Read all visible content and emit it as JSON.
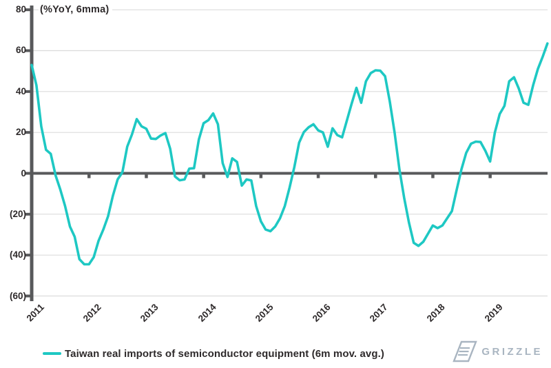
{
  "header": {
    "annotation": "(%YoY, 6mma)"
  },
  "legend": {
    "label": "Taiwan real imports of semiconductor equipment (6m mov. avg.)"
  },
  "branding": {
    "logo_text": "GRIZZLE"
  },
  "colors": {
    "line": "#1EC8C3",
    "axis": "#58595B",
    "grid": "#DBDBDB",
    "text": "#2E2A2B",
    "logo": "#A9B5C1"
  },
  "chart_data": {
    "type": "line",
    "title": "(%YoY, 6mma)",
    "legend_position": "bottom",
    "grid": true,
    "ylim": [
      -60,
      80
    ],
    "y_ticks": [
      80,
      60,
      40,
      20,
      0,
      -20,
      -40,
      -60
    ],
    "y_tick_labels": [
      "80",
      "60",
      "40",
      "20",
      "0",
      "(20)",
      "(40)",
      "(60)"
    ],
    "x_tick_labels": [
      "2011",
      "2012",
      "2013",
      "2014",
      "2015",
      "2016",
      "2017",
      "2018",
      "2019"
    ],
    "series": [
      {
        "name": "Taiwan real imports of semiconductor equipment (6m mov. avg.)",
        "frequency": "monthly",
        "start": "2011-01",
        "end": "2020-01",
        "values": [
          53,
          43,
          23,
          11.5,
          9.5,
          -1,
          -8,
          -16,
          -26,
          -31,
          -42,
          -44.5,
          -44.5,
          -41,
          -33,
          -27.5,
          -21,
          -11,
          -3,
          0.5,
          13,
          19,
          26.5,
          23,
          21.8,
          17,
          16.8,
          18.5,
          19.7,
          12,
          -1.5,
          -3.4,
          -3,
          2.3,
          2.5,
          16.5,
          24.5,
          26,
          29.3,
          24,
          5,
          -1.8,
          7.3,
          5.6,
          -6,
          -3,
          -3.5,
          -16,
          -23.5,
          -27.5,
          -28.3,
          -26,
          -22,
          -16,
          -7,
          3,
          15,
          20.2,
          22.5,
          24,
          21,
          20,
          13,
          22,
          18.7,
          17.6,
          25.8,
          34,
          41.8,
          34.5,
          45,
          49,
          50.4,
          50.2,
          47.5,
          35,
          20,
          2,
          -12,
          -24,
          -34,
          -35.5,
          -33.5,
          -29.5,
          -25.5,
          -26.8,
          -25.5,
          -22,
          -18.5,
          -8,
          2,
          10,
          14.5,
          15.5,
          15.3,
          11,
          5.8,
          20,
          29,
          33,
          45,
          47,
          41.5,
          34.5,
          33.5,
          43,
          51,
          57,
          63.5
        ]
      }
    ]
  }
}
